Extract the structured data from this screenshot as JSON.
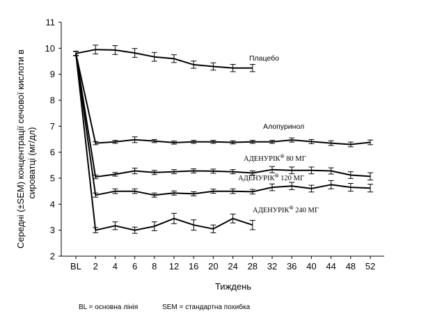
{
  "chart_data": {
    "type": "line",
    "title": "",
    "xlabel": "Тиждень",
    "ylabel": "Середні (±SEM) концентрації сечової кислоти в сироватці (мг/дл)",
    "ylim": [
      2,
      11
    ],
    "yticks": [
      2,
      3,
      4,
      5,
      6,
      7,
      8,
      9,
      10,
      11
    ],
    "categories": [
      "BL",
      "2",
      "4",
      "6",
      "8",
      "12",
      "16",
      "20",
      "24",
      "28",
      "32",
      "36",
      "40",
      "44",
      "48",
      "52"
    ],
    "series": [
      {
        "name": "Плацебо",
        "values": [
          9.8,
          9.95,
          9.93,
          9.82,
          9.67,
          9.6,
          9.37,
          9.3,
          9.24,
          9.24,
          null,
          null,
          null,
          null,
          null,
          null
        ],
        "sem": [
          0.09,
          0.17,
          0.17,
          0.17,
          0.17,
          0.15,
          0.14,
          0.14,
          0.14,
          0.14,
          null,
          null,
          null,
          null,
          null,
          null
        ]
      },
      {
        "name": "Алопуринол",
        "values": [
          9.8,
          6.35,
          6.4,
          6.48,
          6.43,
          6.37,
          6.4,
          6.4,
          6.38,
          6.4,
          6.4,
          6.47,
          6.41,
          6.35,
          6.3,
          6.38
        ],
        "sem": [
          0.08,
          0.06,
          0.06,
          0.11,
          0.06,
          0.06,
          0.06,
          0.06,
          0.06,
          0.06,
          0.06,
          0.08,
          0.08,
          0.09,
          0.09,
          0.09
        ]
      },
      {
        "name": "АДЕНУРІК® 80 МГ",
        "values": [
          9.8,
          5.05,
          5.15,
          5.28,
          5.22,
          5.25,
          5.28,
          5.27,
          5.25,
          5.2,
          5.33,
          5.3,
          5.3,
          5.28,
          5.12,
          5.07
        ],
        "sem": [
          0.08,
          0.07,
          0.07,
          0.11,
          0.08,
          0.08,
          0.08,
          0.08,
          0.08,
          0.08,
          0.12,
          0.13,
          0.13,
          0.12,
          0.13,
          0.14
        ]
      },
      {
        "name": "АДЕНУРІК® 120 МГ",
        "values": [
          9.8,
          4.35,
          4.5,
          4.5,
          4.35,
          4.43,
          4.4,
          4.5,
          4.5,
          4.48,
          4.65,
          4.7,
          4.6,
          4.75,
          4.65,
          4.62
        ],
        "sem": [
          0.08,
          0.08,
          0.09,
          0.09,
          0.08,
          0.08,
          0.08,
          0.08,
          0.09,
          0.09,
          0.13,
          0.14,
          0.13,
          0.16,
          0.15,
          0.15
        ]
      },
      {
        "name": "АДЕНУРІК® 240 МГ",
        "values": [
          9.8,
          3.0,
          3.17,
          3.0,
          3.15,
          3.45,
          3.2,
          3.05,
          3.45,
          3.2,
          null,
          null,
          null,
          null,
          null,
          null
        ],
        "sem": [
          0.08,
          0.1,
          0.15,
          0.12,
          0.17,
          0.2,
          0.2,
          0.15,
          0.17,
          0.18,
          null,
          null,
          null,
          null,
          null,
          null
        ]
      }
    ],
    "annotations": [
      {
        "series": "Плацебо",
        "text": "Плацебо"
      },
      {
        "series": "Алопуринол",
        "text": "Алопуринол"
      },
      {
        "series": "АДЕНУРІК® 80 МГ",
        "brand": "АДЕНУРІК",
        "sup": "®",
        "rest": " 80 МГ"
      },
      {
        "series": "АДЕНУРІК® 120 МГ",
        "brand": "АДЕНУРІК",
        "sup": "®",
        "rest": " 120 МГ"
      },
      {
        "series": "АДЕНУРІК® 240 МГ",
        "brand": "АДЕНУРІК",
        "sup": "®",
        "rest": " 240 МГ"
      }
    ]
  },
  "footnote": {
    "bl": "BL = основна лінія",
    "sem": "SEM = стандартна похибка"
  }
}
